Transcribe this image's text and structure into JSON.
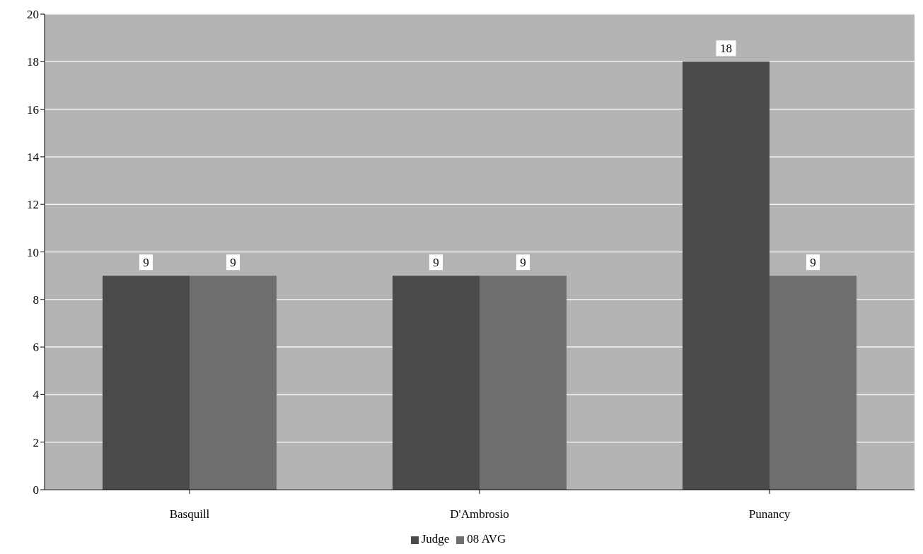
{
  "chart_data": {
    "type": "bar",
    "categories": [
      "Basquill",
      "D'Ambrosio",
      "Punancy"
    ],
    "series": [
      {
        "name": "Judge",
        "color": "#4a4a4a",
        "values": [
          9,
          9,
          18
        ]
      },
      {
        "name": "08 AVG",
        "color": "#6e6e6e",
        "values": [
          9,
          9,
          9
        ]
      }
    ],
    "ylim": [
      0,
      20
    ],
    "yticks": [
      0,
      2,
      4,
      6,
      8,
      10,
      12,
      14,
      16,
      18,
      20
    ],
    "grid": "y",
    "legend": "bottom",
    "data_labels": true
  }
}
